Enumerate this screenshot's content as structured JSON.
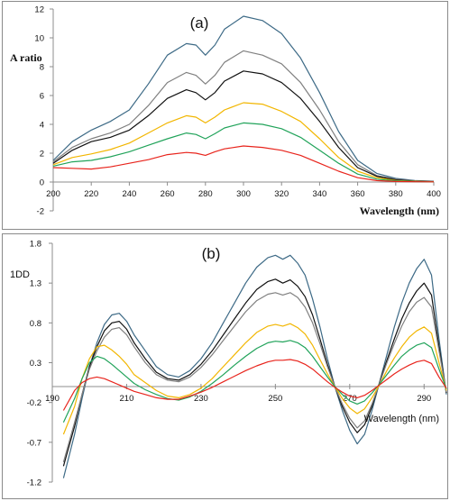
{
  "chart_data": [
    {
      "type": "line",
      "title": "(a)",
      "xlabel": "Wavelength (nm)",
      "ylabel": "A ratio",
      "xlim": [
        200,
        400
      ],
      "ylim": [
        -2,
        12
      ],
      "xticks": [
        200,
        220,
        240,
        260,
        280,
        300,
        320,
        340,
        360,
        380,
        400
      ],
      "yticks": [
        -2,
        0,
        2,
        4,
        6,
        8,
        10,
        12
      ],
      "grid": false,
      "x": [
        200,
        210,
        220,
        230,
        240,
        250,
        260,
        270,
        275,
        280,
        285,
        290,
        300,
        310,
        320,
        330,
        340,
        350,
        360,
        370,
        380,
        390,
        400
      ],
      "series": [
        {
          "color": "#3d6a86",
          "values": [
            1.5,
            2.8,
            3.6,
            4.2,
            5.0,
            6.8,
            8.8,
            9.6,
            9.5,
            8.8,
            9.5,
            10.6,
            11.5,
            11.2,
            10.3,
            8.6,
            6.2,
            3.5,
            1.5,
            0.6,
            0.25,
            0.1,
            0.05
          ]
        },
        {
          "color": "#808080",
          "values": [
            1.4,
            2.4,
            3.0,
            3.4,
            4.0,
            5.3,
            6.9,
            7.6,
            7.4,
            6.8,
            7.4,
            8.3,
            9.1,
            8.8,
            8.2,
            6.9,
            5.0,
            2.8,
            1.2,
            0.45,
            0.2,
            0.08,
            0.04
          ]
        },
        {
          "color": "#111111",
          "values": [
            1.3,
            2.2,
            2.8,
            3.1,
            3.6,
            4.6,
            5.8,
            6.4,
            6.2,
            5.7,
            6.2,
            7.0,
            7.7,
            7.5,
            6.9,
            5.8,
            4.2,
            2.4,
            1.0,
            0.4,
            0.15,
            0.06,
            0.03
          ]
        },
        {
          "color": "#f2b600",
          "values": [
            1.2,
            1.7,
            1.95,
            2.25,
            2.7,
            3.4,
            4.1,
            4.6,
            4.5,
            4.1,
            4.5,
            5.0,
            5.5,
            5.4,
            4.9,
            4.2,
            3.0,
            1.7,
            0.75,
            0.3,
            0.1,
            0.05,
            0.02
          ]
        },
        {
          "color": "#21a35a",
          "values": [
            1.1,
            1.4,
            1.5,
            1.75,
            2.1,
            2.55,
            3.0,
            3.4,
            3.3,
            3.0,
            3.35,
            3.75,
            4.1,
            4.0,
            3.7,
            3.1,
            2.2,
            1.3,
            0.55,
            0.2,
            0.08,
            0.03,
            0.01
          ]
        },
        {
          "color": "#e8241c",
          "values": [
            1.0,
            0.95,
            0.9,
            1.05,
            1.3,
            1.55,
            1.9,
            2.05,
            2.0,
            1.85,
            2.1,
            2.3,
            2.5,
            2.4,
            2.2,
            1.85,
            1.3,
            0.75,
            0.3,
            0.1,
            0.04,
            0.02,
            0.01
          ]
        }
      ]
    },
    {
      "type": "line",
      "title": "(b)",
      "xlabel": "Wavelength (nm)",
      "ylabel": "1DD",
      "xlim": [
        190,
        296
      ],
      "ylim": [
        -1.2,
        1.8
      ],
      "xticks": [
        190,
        210,
        230,
        250,
        270,
        290
      ],
      "yticks": [
        -1.2,
        -0.7,
        -0.2,
        0.3,
        0.8,
        1.3,
        1.8
      ],
      "grid": false,
      "x": [
        193,
        196,
        198,
        200,
        202,
        204,
        206,
        208,
        210,
        212,
        215,
        218,
        221,
        224,
        227,
        230,
        233,
        236,
        239,
        242,
        245,
        248,
        250,
        252,
        254,
        256,
        258,
        260,
        262,
        264,
        266,
        268,
        270,
        272,
        274,
        276,
        278,
        280,
        282,
        284,
        286,
        288,
        290,
        292,
        294,
        296
      ],
      "series": [
        {
          "color": "#3d6a86",
          "values": [
            -1.15,
            -0.6,
            -0.15,
            0.25,
            0.55,
            0.78,
            0.9,
            0.92,
            0.82,
            0.65,
            0.45,
            0.25,
            0.15,
            0.12,
            0.2,
            0.35,
            0.55,
            0.8,
            1.05,
            1.3,
            1.5,
            1.62,
            1.65,
            1.6,
            1.65,
            1.55,
            1.4,
            1.1,
            0.75,
            0.35,
            0.0,
            -0.3,
            -0.55,
            -0.72,
            -0.6,
            -0.3,
            0.05,
            0.4,
            0.75,
            1.05,
            1.3,
            1.48,
            1.6,
            1.4,
            0.6,
            -0.1
          ]
        },
        {
          "color": "#111111",
          "values": [
            -1.0,
            -0.5,
            -0.1,
            0.25,
            0.5,
            0.7,
            0.8,
            0.82,
            0.72,
            0.55,
            0.35,
            0.18,
            0.1,
            0.08,
            0.15,
            0.28,
            0.45,
            0.65,
            0.85,
            1.05,
            1.22,
            1.32,
            1.35,
            1.3,
            1.34,
            1.26,
            1.13,
            0.9,
            0.6,
            0.28,
            0.0,
            -0.25,
            -0.45,
            -0.58,
            -0.48,
            -0.25,
            0.05,
            0.33,
            0.6,
            0.85,
            1.05,
            1.2,
            1.3,
            1.15,
            0.5,
            -0.08
          ]
        },
        {
          "color": "#808080",
          "values": [
            -0.95,
            -0.45,
            -0.1,
            0.22,
            0.45,
            0.62,
            0.72,
            0.74,
            0.65,
            0.5,
            0.3,
            0.15,
            0.08,
            0.06,
            0.12,
            0.24,
            0.4,
            0.58,
            0.76,
            0.94,
            1.08,
            1.16,
            1.18,
            1.15,
            1.18,
            1.12,
            1.0,
            0.8,
            0.54,
            0.25,
            0.0,
            -0.22,
            -0.4,
            -0.52,
            -0.43,
            -0.22,
            0.04,
            0.3,
            0.54,
            0.76,
            0.94,
            1.06,
            1.12,
            1.0,
            0.45,
            -0.07
          ]
        },
        {
          "color": "#f2b600",
          "values": [
            -0.6,
            -0.25,
            0.1,
            0.35,
            0.5,
            0.52,
            0.46,
            0.38,
            0.28,
            0.15,
            0.05,
            -0.05,
            -0.12,
            -0.14,
            -0.1,
            -0.02,
            0.1,
            0.25,
            0.4,
            0.55,
            0.68,
            0.76,
            0.78,
            0.76,
            0.79,
            0.74,
            0.66,
            0.52,
            0.34,
            0.16,
            0.0,
            -0.15,
            -0.27,
            -0.34,
            -0.28,
            -0.14,
            0.02,
            0.2,
            0.36,
            0.5,
            0.62,
            0.7,
            0.75,
            0.67,
            0.3,
            -0.05
          ]
        },
        {
          "color": "#21a35a",
          "values": [
            -0.45,
            -0.15,
            0.1,
            0.3,
            0.38,
            0.35,
            0.28,
            0.2,
            0.12,
            0.04,
            -0.04,
            -0.1,
            -0.15,
            -0.17,
            -0.13,
            -0.06,
            0.04,
            0.15,
            0.27,
            0.38,
            0.48,
            0.55,
            0.57,
            0.56,
            0.58,
            0.55,
            0.49,
            0.38,
            0.25,
            0.12,
            0.0,
            -0.1,
            -0.18,
            -0.22,
            -0.18,
            -0.08,
            0.03,
            0.15,
            0.27,
            0.38,
            0.46,
            0.52,
            0.55,
            0.49,
            0.22,
            -0.03
          ]
        },
        {
          "color": "#e8241c",
          "values": [
            -0.3,
            -0.05,
            0.05,
            0.1,
            0.12,
            0.1,
            0.06,
            0.02,
            -0.02,
            -0.06,
            -0.1,
            -0.14,
            -0.16,
            -0.16,
            -0.12,
            -0.07,
            -0.01,
            0.06,
            0.13,
            0.2,
            0.26,
            0.31,
            0.33,
            0.33,
            0.34,
            0.32,
            0.28,
            0.22,
            0.14,
            0.06,
            -0.01,
            -0.07,
            -0.12,
            -0.14,
            -0.11,
            -0.05,
            0.02,
            0.09,
            0.16,
            0.22,
            0.27,
            0.31,
            0.33,
            0.29,
            0.12,
            -0.02
          ]
        }
      ]
    }
  ]
}
